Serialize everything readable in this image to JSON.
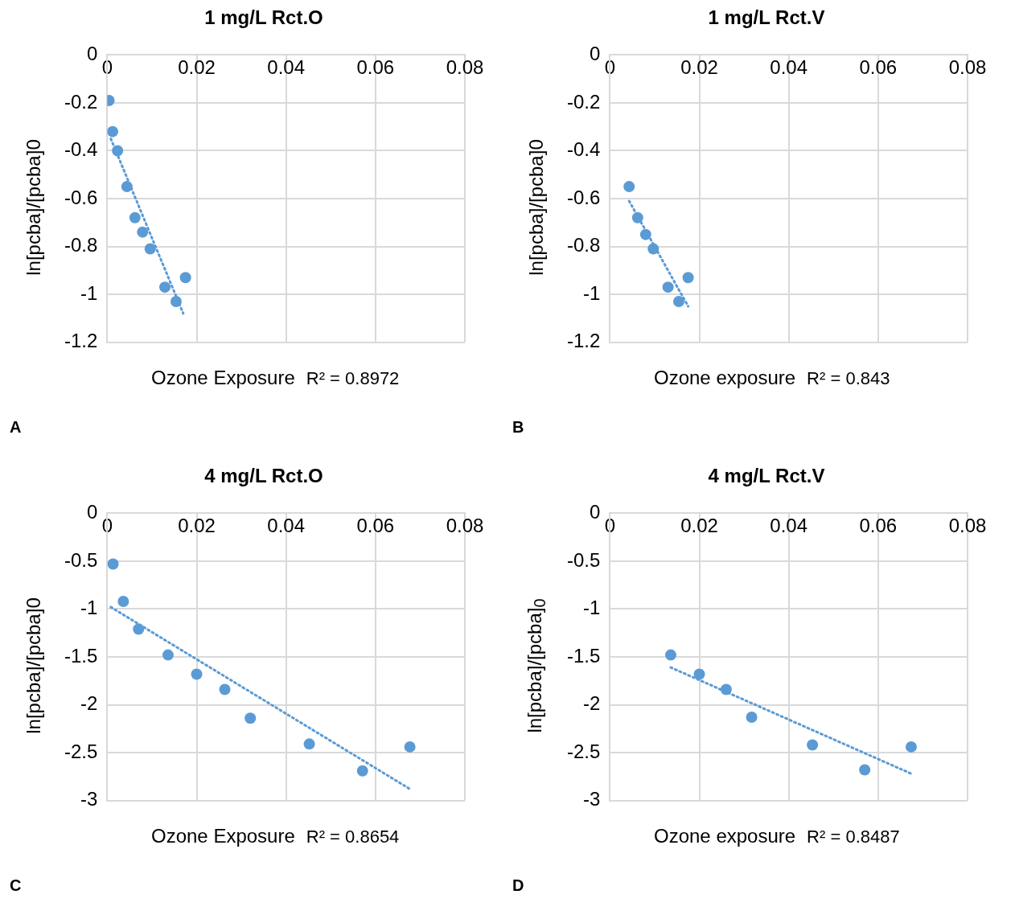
{
  "chart_data": [
    {
      "type": "scatter",
      "title": "1 mg/L Rct.O",
      "xlabel": "Ozone Exposure",
      "ylabel": "ln[pcba]/[pcba]0",
      "annotations": [
        "R² = 0.8972",
        "A"
      ],
      "xlim": [
        0,
        0.08
      ],
      "xticks": [
        0,
        0.02,
        0.04,
        0.06,
        0.08
      ],
      "ylim": [
        -1.2,
        0
      ],
      "yticks": [
        -1.2,
        -1,
        -0.8,
        -0.6,
        -0.4,
        -0.2,
        0
      ],
      "grid": true,
      "legend": false,
      "marker": "circle",
      "series": [
        {
          "type": "scatter",
          "color": "#5b9bd5",
          "x": [
            0.0004,
            0.0012,
            0.0023,
            0.0044,
            0.0062,
            0.0079,
            0.0096,
            0.0129,
            0.0154,
            0.0175
          ],
          "values": [
            -0.19,
            -0.32,
            -0.4,
            -0.55,
            -0.68,
            -0.74,
            -0.81,
            -0.97,
            -1.03,
            -0.93
          ]
        },
        {
          "type": "line",
          "color": "#5b9bd5",
          "line_style": "dotted",
          "marker": "none",
          "x": [
            0.0008,
            0.017
          ],
          "values": [
            -0.35,
            -1.08
          ]
        }
      ]
    },
    {
      "type": "scatter",
      "title": "1 mg/L Rct.V",
      "xlabel": "Ozone exposure",
      "ylabel": "ln[pcba]/[pcba]0",
      "annotations": [
        "R² = 0.843",
        "B"
      ],
      "xlim": [
        0,
        0.08
      ],
      "xticks": [
        0,
        0.02,
        0.04,
        0.06,
        0.08
      ],
      "ylim": [
        -1.2,
        0
      ],
      "yticks": [
        -1.2,
        -1,
        -0.8,
        -0.6,
        -0.4,
        -0.2,
        0
      ],
      "grid": true,
      "legend": false,
      "marker": "circle",
      "series": [
        {
          "type": "scatter",
          "color": "#5b9bd5",
          "x": [
            0.0043,
            0.0062,
            0.008,
            0.0097,
            0.013,
            0.0154,
            0.0175
          ],
          "values": [
            -0.55,
            -0.68,
            -0.75,
            -0.81,
            -0.97,
            -1.03,
            -0.93
          ]
        },
        {
          "type": "line",
          "color": "#5b9bd5",
          "line_style": "dotted",
          "marker": "none",
          "x": [
            0.0043,
            0.0175
          ],
          "values": [
            -0.61,
            -1.05
          ]
        }
      ]
    },
    {
      "type": "scatter",
      "title": "4 mg/L Rct.O",
      "xlabel": "Ozone Exposure",
      "ylabel": "ln[pcba]/[pcba]0",
      "annotations": [
        "R² = 0.8654",
        "C"
      ],
      "xlim": [
        0,
        0.08
      ],
      "xticks": [
        0,
        0.02,
        0.04,
        0.06,
        0.08
      ],
      "ylim": [
        -3,
        0
      ],
      "yticks": [
        -3,
        -2.5,
        -2,
        -1.5,
        -1,
        -0.5,
        0
      ],
      "grid": true,
      "legend": false,
      "marker": "circle",
      "series": [
        {
          "type": "scatter",
          "color": "#5b9bd5",
          "x": [
            0.0013,
            0.0036,
            0.007,
            0.0136,
            0.02,
            0.0263,
            0.032,
            0.0452,
            0.0571,
            0.0677
          ],
          "values": [
            -0.53,
            -0.92,
            -1.21,
            -1.48,
            -1.68,
            -1.84,
            -2.14,
            -2.41,
            -2.69,
            -2.44
          ]
        },
        {
          "type": "line",
          "color": "#5b9bd5",
          "line_style": "dotted",
          "marker": "none",
          "x": [
            0.0008,
            0.0677
          ],
          "values": [
            -0.98,
            -2.88
          ]
        }
      ]
    },
    {
      "type": "scatter",
      "title": "4 mg/L Rct.V",
      "xlabel": "Ozone exposure",
      "ylabel": "ln[pcba]/[pcba]$_{0}$",
      "annotations": [
        "R² = 0.8487",
        "D"
      ],
      "xlim": [
        0,
        0.08
      ],
      "xticks": [
        0,
        0.02,
        0.04,
        0.06,
        0.08
      ],
      "ylim": [
        -3,
        0
      ],
      "yticks": [
        -3,
        -2.5,
        -2,
        -1.5,
        -1,
        -0.5,
        0
      ],
      "grid": true,
      "legend": false,
      "marker": "circle",
      "series": [
        {
          "type": "scatter",
          "color": "#5b9bd5",
          "x": [
            0.0136,
            0.02,
            0.026,
            0.0317,
            0.0453,
            0.057,
            0.0674
          ],
          "values": [
            -1.48,
            -1.68,
            -1.84,
            -2.13,
            -2.42,
            -2.68,
            -2.44
          ]
        },
        {
          "type": "line",
          "color": "#5b9bd5",
          "line_style": "dotted",
          "marker": "none",
          "x": [
            0.0136,
            0.0674
          ],
          "values": [
            -1.61,
            -2.72
          ]
        }
      ]
    }
  ]
}
